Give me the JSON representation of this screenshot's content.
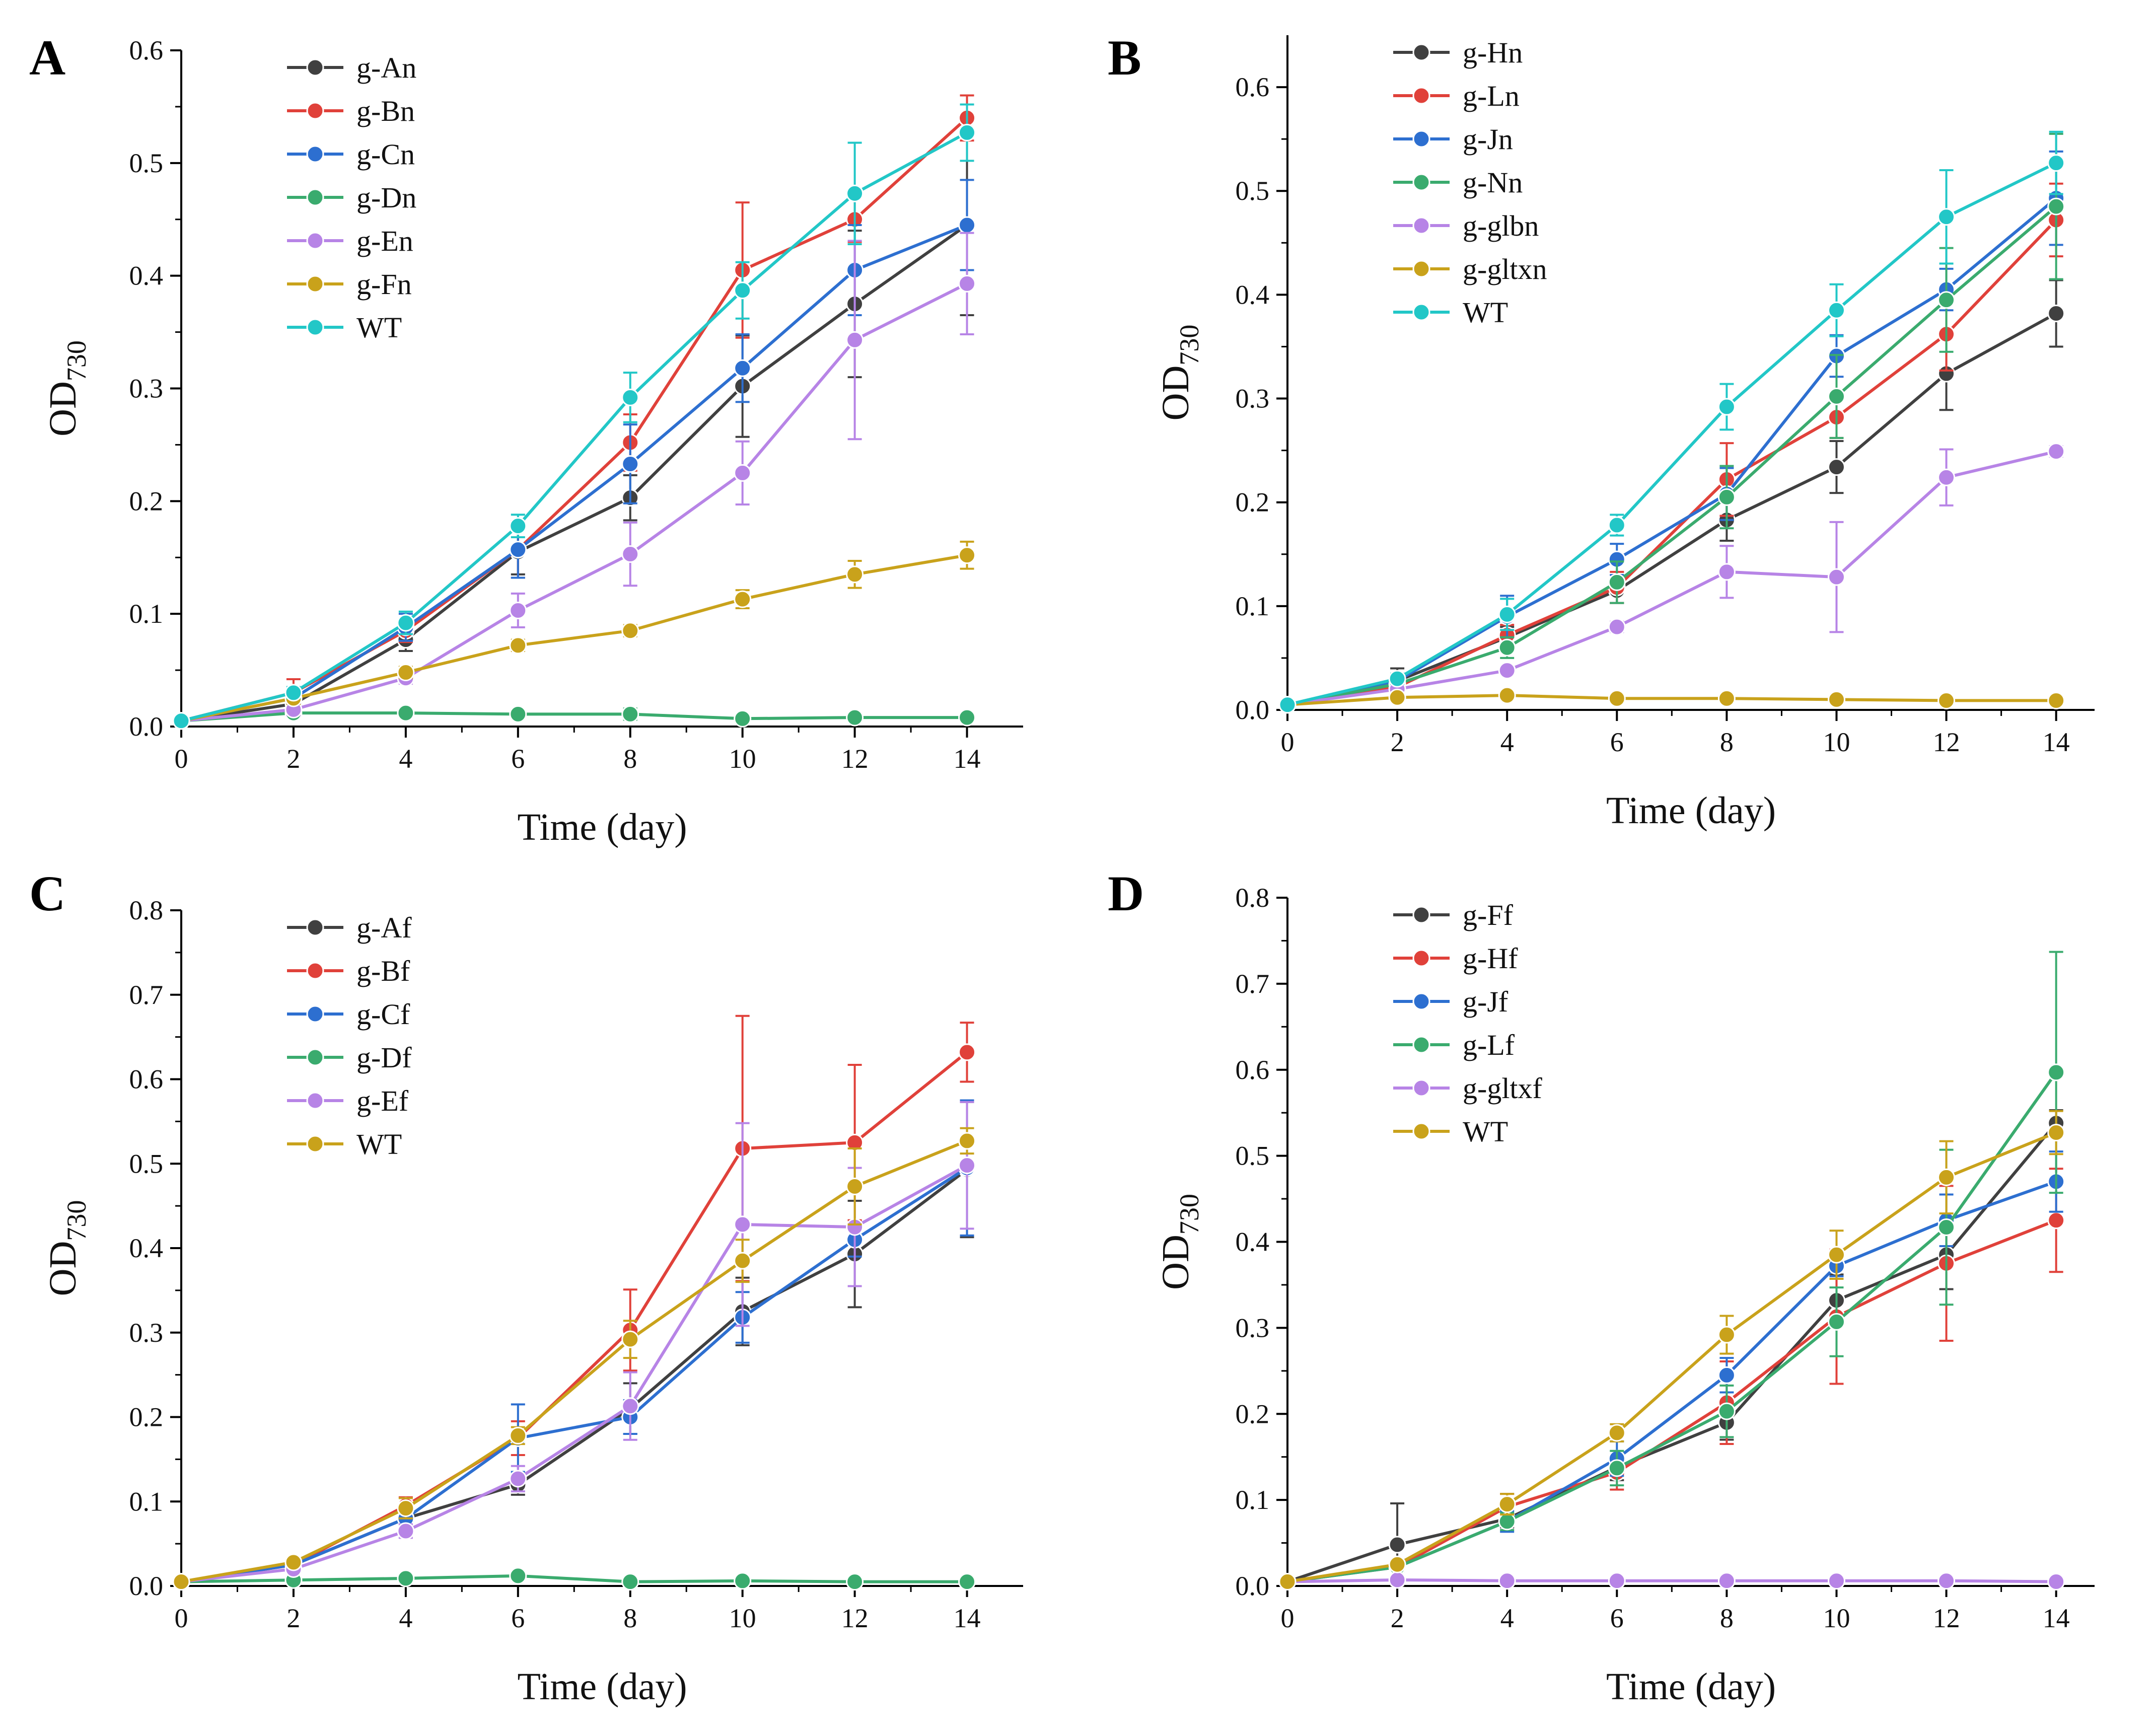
{
  "chart_data": [
    {
      "type": "line",
      "panel": "A",
      "xlabel": "Time (day)",
      "ylabel": "OD",
      "ylabel_sub": "730",
      "x": [
        0,
        2,
        4,
        6,
        8,
        10,
        12,
        14
      ],
      "xticks": [
        0,
        2,
        4,
        6,
        8,
        10,
        12,
        14
      ],
      "xlim": [
        0,
        15
      ],
      "ylim": [
        0,
        0.6
      ],
      "yticks": [
        0.0,
        0.1,
        0.2,
        0.3,
        0.4,
        0.5,
        0.6
      ],
      "legend_position": "top-left",
      "series": [
        {
          "name": "g-An",
          "color": "#404040",
          "values": [
            0.005,
            0.02,
            0.077,
            0.155,
            0.203,
            0.302,
            0.375,
            0.445
          ],
          "errors": [
            0,
            0.01,
            0.01,
            0.02,
            0.02,
            0.045,
            0.065,
            0.08
          ]
        },
        {
          "name": "g-Bn",
          "color": "#e0413a",
          "values": [
            0.005,
            0.03,
            0.085,
            0.157,
            0.252,
            0.405,
            0.45,
            0.54
          ],
          "errors": [
            0,
            0.012,
            0.01,
            0.025,
            0.025,
            0.06,
            0.02,
            0.02
          ]
        },
        {
          "name": "g-Cn",
          "color": "#2d6fd0",
          "values": [
            0.005,
            0.025,
            0.088,
            0.157,
            0.233,
            0.318,
            0.405,
            0.445
          ],
          "errors": [
            0,
            0.01,
            0.012,
            0.025,
            0.035,
            0.03,
            0.04,
            0.04
          ]
        },
        {
          "name": "g-Dn",
          "color": "#3aab6e",
          "values": [
            0.005,
            0.012,
            0.012,
            0.011,
            0.011,
            0.007,
            0.008,
            0.008
          ],
          "errors": [
            0,
            0.002,
            0.002,
            0.002,
            0.005,
            0.002,
            0.002,
            0.002
          ]
        },
        {
          "name": "g-En",
          "color": "#b784e6",
          "values": [
            0.005,
            0.015,
            0.043,
            0.103,
            0.153,
            0.225,
            0.343,
            0.393
          ],
          "errors": [
            0,
            0.005,
            0.005,
            0.015,
            0.028,
            0.028,
            0.088,
            0.045
          ]
        },
        {
          "name": "g-Fn",
          "color": "#c9a21b",
          "values": [
            0.005,
            0.025,
            0.048,
            0.072,
            0.085,
            0.113,
            0.135,
            0.152
          ],
          "errors": [
            0,
            0.005,
            0.005,
            0.005,
            0.005,
            0.008,
            0.012,
            0.012
          ]
        },
        {
          "name": "WT",
          "color": "#22c7c7",
          "values": [
            0.005,
            0.03,
            0.092,
            0.178,
            0.292,
            0.387,
            0.473,
            0.527
          ],
          "errors": [
            0,
            0.005,
            0.01,
            0.01,
            0.022,
            0.025,
            0.045,
            0.025
          ]
        }
      ]
    },
    {
      "type": "line",
      "panel": "B",
      "xlabel": "Time (day)",
      "ylabel": "OD",
      "ylabel_sub": "730",
      "x": [
        0,
        2,
        4,
        6,
        8,
        10,
        12,
        14
      ],
      "xticks": [
        0,
        2,
        4,
        6,
        8,
        10,
        12,
        14
      ],
      "xlim": [
        0,
        14.7
      ],
      "ylim": [
        0,
        0.65
      ],
      "yticks": [
        0.0,
        0.1,
        0.2,
        0.3,
        0.4,
        0.5,
        0.6
      ],
      "legend_position": "top-left",
      "series": [
        {
          "name": "g-Hn",
          "color": "#404040",
          "values": [
            0.005,
            0.028,
            0.07,
            0.115,
            0.183,
            0.234,
            0.324,
            0.382
          ],
          "errors": [
            0,
            0.012,
            0.01,
            0.012,
            0.02,
            0.025,
            0.035,
            0.032
          ]
        },
        {
          "name": "g-Ln",
          "color": "#e0413a",
          "values": [
            0.005,
            0.022,
            0.072,
            0.118,
            0.222,
            0.282,
            0.362,
            0.472
          ],
          "errors": [
            0,
            0.005,
            0.01,
            0.015,
            0.035,
            0.02,
            0.035,
            0.035
          ]
        },
        {
          "name": "g-Jn",
          "color": "#2d6fd0",
          "values": [
            0.005,
            0.028,
            0.09,
            0.145,
            0.208,
            0.341,
            0.405,
            0.493
          ],
          "errors": [
            0,
            0.005,
            0.02,
            0.015,
            0.025,
            0.02,
            0.02,
            0.045
          ]
        },
        {
          "name": "g-Nn",
          "color": "#3aab6e",
          "values": [
            0.005,
            0.025,
            0.06,
            0.123,
            0.205,
            0.302,
            0.395,
            0.485
          ],
          "errors": [
            0,
            0.005,
            0.01,
            0.02,
            0.03,
            0.04,
            0.05,
            0.07
          ]
        },
        {
          "name": "g-glbn",
          "color": "#b784e6",
          "values": [
            0.005,
            0.02,
            0.038,
            0.08,
            0.133,
            0.128,
            0.224,
            0.249
          ],
          "errors": [
            0,
            0.004,
            0.004,
            0.005,
            0.025,
            0.053,
            0.027,
            0.005
          ]
        },
        {
          "name": "g-gltxn",
          "color": "#c9a21b",
          "values": [
            0.005,
            0.012,
            0.014,
            0.011,
            0.011,
            0.01,
            0.009,
            0.009
          ],
          "errors": [
            0,
            0.002,
            0.002,
            0.002,
            0.002,
            0.002,
            0.002,
            0.002
          ]
        },
        {
          "name": "WT",
          "color": "#22c7c7",
          "values": [
            0.005,
            0.03,
            0.092,
            0.178,
            0.292,
            0.385,
            0.475,
            0.527
          ],
          "errors": [
            0,
            0.005,
            0.015,
            0.01,
            0.022,
            0.025,
            0.045,
            0.03
          ]
        }
      ]
    },
    {
      "type": "line",
      "panel": "C",
      "xlabel": "Time (day)",
      "ylabel": "OD",
      "ylabel_sub": "730",
      "x": [
        0,
        2,
        4,
        6,
        8,
        10,
        12,
        14
      ],
      "xticks": [
        0,
        2,
        4,
        6,
        8,
        10,
        12,
        14
      ],
      "xlim": [
        0,
        15
      ],
      "ylim": [
        0,
        0.8
      ],
      "yticks": [
        0.0,
        0.1,
        0.2,
        0.3,
        0.4,
        0.5,
        0.6,
        0.7,
        0.8
      ],
      "legend_position": "top-left",
      "series": [
        {
          "name": "g-Af",
          "color": "#404040",
          "values": [
            0.005,
            0.025,
            0.08,
            0.12,
            0.21,
            0.325,
            0.393,
            0.493
          ],
          "errors": [
            0,
            0.005,
            0.015,
            0.012,
            0.03,
            0.04,
            0.063,
            0.08
          ]
        },
        {
          "name": "g-Bf",
          "color": "#e0413a",
          "values": [
            0.005,
            0.025,
            0.095,
            0.175,
            0.303,
            0.518,
            0.525,
            0.632
          ],
          "errors": [
            0,
            0.005,
            0.01,
            0.02,
            0.048,
            0.157,
            0.092,
            0.035
          ]
        },
        {
          "name": "g-Cf",
          "color": "#2d6fd0",
          "values": [
            0.005,
            0.025,
            0.08,
            0.175,
            0.2,
            0.318,
            0.41,
            0.495
          ],
          "errors": [
            0,
            0.005,
            0.015,
            0.04,
            0.02,
            0.03,
            0.02,
            0.08
          ]
        },
        {
          "name": "g-Df",
          "color": "#3aab6e",
          "values": [
            0.005,
            0.007,
            0.009,
            0.012,
            0.005,
            0.006,
            0.005,
            0.005
          ],
          "errors": [
            0,
            0.002,
            0.002,
            0.004,
            0.002,
            0.002,
            0.002,
            0.002
          ]
        },
        {
          "name": "g-Ef",
          "color": "#b784e6",
          "values": [
            0.005,
            0.02,
            0.065,
            0.127,
            0.213,
            0.428,
            0.425,
            0.498
          ],
          "errors": [
            0,
            0.004,
            0.008,
            0.015,
            0.04,
            0.12,
            0.07,
            0.075
          ]
        },
        {
          "name": "WT",
          "color": "#c9a21b",
          "values": [
            0.005,
            0.028,
            0.092,
            0.178,
            0.292,
            0.385,
            0.473,
            0.527
          ],
          "errors": [
            0,
            0.005,
            0.012,
            0.01,
            0.022,
            0.025,
            0.045,
            0.015
          ]
        }
      ]
    },
    {
      "type": "line",
      "panel": "D",
      "xlabel": "Time (day)",
      "ylabel": "OD",
      "ylabel_sub": "730",
      "x": [
        0,
        2,
        4,
        6,
        8,
        10,
        12,
        14
      ],
      "xticks": [
        0,
        2,
        4,
        6,
        8,
        10,
        12,
        14
      ],
      "xlim": [
        0,
        14.7
      ],
      "ylim": [
        0,
        0.8
      ],
      "yticks": [
        0.0,
        0.1,
        0.2,
        0.3,
        0.4,
        0.5,
        0.6,
        0.7,
        0.8
      ],
      "legend_position": "top-left",
      "series": [
        {
          "name": "g-Ff",
          "color": "#404040",
          "values": [
            0.005,
            0.048,
            0.078,
            0.138,
            0.19,
            0.332,
            0.385,
            0.538
          ],
          "errors": [
            0,
            0.048,
            0.01,
            0.015,
            0.02,
            0.03,
            0.04,
            0.015
          ]
        },
        {
          "name": "g-Hf",
          "color": "#e0413a",
          "values": [
            0.005,
            0.022,
            0.092,
            0.132,
            0.213,
            0.313,
            0.375,
            0.425
          ],
          "errors": [
            0,
            0.005,
            0.015,
            0.02,
            0.048,
            0.078,
            0.09,
            0.06
          ]
        },
        {
          "name": "g-Jf",
          "color": "#2d6fd0",
          "values": [
            0.005,
            0.022,
            0.075,
            0.148,
            0.245,
            0.372,
            0.425,
            0.47
          ],
          "errors": [
            0,
            0.005,
            0.012,
            0.02,
            0.02,
            0.012,
            0.03,
            0.035
          ]
        },
        {
          "name": "g-Lf",
          "color": "#3aab6e",
          "values": [
            0.005,
            0.022,
            0.075,
            0.137,
            0.203,
            0.307,
            0.417,
            0.597
          ],
          "errors": [
            0,
            0.005,
            0.01,
            0.02,
            0.03,
            0.04,
            0.09,
            0.14
          ]
        },
        {
          "name": "g-gltxf",
          "color": "#b784e6",
          "values": [
            0.005,
            0.007,
            0.006,
            0.006,
            0.006,
            0.006,
            0.006,
            0.005
          ],
          "errors": [
            0,
            0.002,
            0.002,
            0.002,
            0.002,
            0.002,
            0.002,
            0.002
          ]
        },
        {
          "name": "WT",
          "color": "#c9a21b",
          "values": [
            0.005,
            0.025,
            0.095,
            0.178,
            0.292,
            0.385,
            0.475,
            0.527
          ],
          "errors": [
            0,
            0.005,
            0.012,
            0.01,
            0.022,
            0.028,
            0.042,
            0.025
          ]
        }
      ]
    }
  ]
}
